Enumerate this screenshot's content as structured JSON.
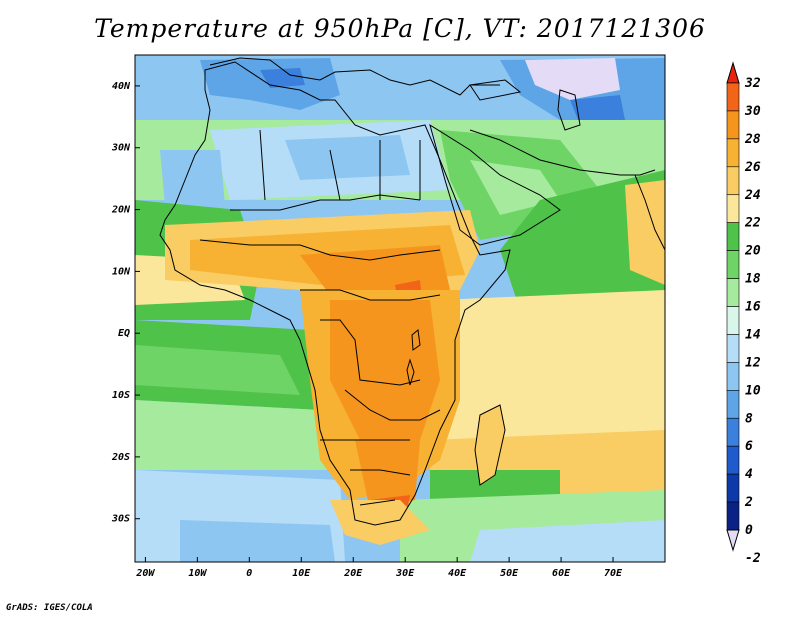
{
  "title": "Temperature at 950hPa [C], VT: 2017121306",
  "credit": "GrADS: IGES/COLA",
  "map": {
    "x_ticks": [
      "20W",
      "10W",
      "0",
      "10E",
      "20E",
      "30E",
      "40E",
      "50E",
      "60E",
      "70E"
    ],
    "y_ticks": [
      "40N",
      "30N",
      "20N",
      "10N",
      "EQ",
      "10S",
      "20S",
      "30S"
    ],
    "lon_range": [
      -22,
      80
    ],
    "lat_range": [
      -37,
      45
    ]
  },
  "colorbar": {
    "levels": [
      "32",
      "30",
      "28",
      "26",
      "24",
      "22",
      "20",
      "18",
      "16",
      "14",
      "12",
      "10",
      "8",
      "6",
      "4",
      "2",
      "0",
      "-2"
    ],
    "colors": [
      "#e8240c",
      "#f26518",
      "#f5951e",
      "#f7b233",
      "#f9cd63",
      "#fbe79c",
      "#4fc24a",
      "#6fd466",
      "#a5ea9d",
      "#d8f7ea",
      "#b5ddf8",
      "#8ec6f2",
      "#5ea5e8",
      "#3a80dc",
      "#1f5bcc",
      "#0d3aa8",
      "#0a2285",
      "#e4dcf6"
    ]
  }
}
